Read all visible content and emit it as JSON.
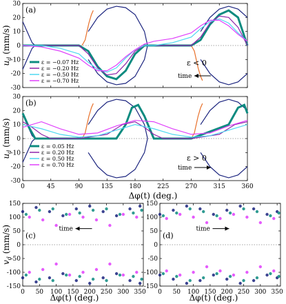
{
  "figure": {
    "shared_xlabel_top": "Δφ(t) (deg.)",
    "shared_xlabel_bottom": "Δφ(t) (deg.)"
  },
  "colors": {
    "navy": "#1a237e",
    "orange": "#e8702a",
    "teal": "#0d8b80",
    "purple": "#8e24aa",
    "cyan": "#4dd9f0",
    "magenta": "#e040fb"
  },
  "chart_data": [
    {
      "id": "a",
      "type": "line",
      "panel_label": "(a)",
      "ylabel": "u_d (mm/s)",
      "xlim": [
        0,
        360
      ],
      "ylim": [
        -30,
        30
      ],
      "xticks": [
        0,
        45,
        90,
        135,
        180,
        225,
        270,
        315,
        360
      ],
      "yticks": [
        -30,
        -20,
        -10,
        0,
        10,
        20,
        30
      ],
      "annotation": "ε < 0",
      "time_label": "time",
      "time_arrow": "left",
      "legend": [
        "ε = −0.07 Hz",
        "ε = −0.20 Hz",
        "ε = −0.50 Hz",
        "ε = −0.70 Hz"
      ],
      "series": [
        {
          "name": "ε = −0.07 Hz",
          "color": "#0d8b80",
          "x": [
            0,
            45,
            90,
            105,
            120,
            135,
            150,
            165,
            180,
            195,
            210,
            225,
            240,
            255,
            270,
            285,
            300,
            315,
            330,
            345,
            360
          ],
          "y": [
            0,
            0,
            0,
            -4,
            -15,
            -22,
            -24,
            -18,
            -6,
            0,
            0,
            0,
            0,
            0,
            0,
            4,
            15,
            22,
            25,
            20,
            0
          ]
        },
        {
          "name": "ε = −0.20 Hz",
          "color": "#8e24aa",
          "x": [
            0,
            45,
            90,
            105,
            120,
            135,
            150,
            165,
            180,
            195,
            210,
            225,
            240,
            255,
            270,
            285,
            300,
            315,
            330,
            345,
            360
          ],
          "y": [
            0,
            0,
            0,
            -6,
            -16,
            -21,
            -20,
            -13,
            -4,
            0,
            0,
            0,
            0,
            0,
            0,
            6,
            16,
            21,
            20,
            13,
            0
          ]
        },
        {
          "name": "ε = −0.50 Hz",
          "color": "#4dd9f0",
          "x": [
            0,
            30,
            60,
            90,
            105,
            120,
            135,
            150,
            165,
            180,
            195,
            210,
            240,
            270,
            285,
            300,
            315,
            330,
            345,
            360
          ],
          "y": [
            0,
            0,
            -2,
            -6,
            -12,
            -17,
            -19,
            -16,
            -9,
            -3,
            0,
            0,
            2,
            6,
            12,
            17,
            19,
            16,
            9,
            3
          ]
        },
        {
          "name": "ε = −0.70 Hz",
          "color": "#e040fb",
          "x": [
            0,
            30,
            60,
            90,
            105,
            120,
            135,
            150,
            165,
            180,
            195,
            210,
            240,
            270,
            285,
            300,
            315,
            330,
            345,
            360
          ],
          "y": [
            0,
            -1,
            -4,
            -9,
            -14,
            -18,
            -18,
            -14,
            -8,
            -3,
            1,
            3,
            5,
            9,
            14,
            18,
            18,
            14,
            8,
            3
          ]
        }
      ],
      "reference_curves": [
        {
          "color": "#1a237e",
          "x": [
            0,
            5,
            10,
            15,
            20
          ],
          "y": [
            17,
            12,
            7,
            2,
            0
          ]
        },
        {
          "color": "#1a237e",
          "x": [
            0,
            5,
            10,
            15,
            20
          ],
          "y": [
            -17,
            -12,
            -7,
            -2,
            0
          ]
        },
        {
          "color": "#1a237e",
          "x": [
            105,
            120,
            135,
            150,
            165,
            180,
            195,
            200
          ],
          "y": [
            10,
            20,
            26,
            28,
            27,
            22,
            10,
            0
          ]
        },
        {
          "color": "#1a237e",
          "x": [
            105,
            120,
            135,
            150,
            165,
            180,
            195,
            200
          ],
          "y": [
            -10,
            -20,
            -26,
            -28,
            -27,
            -22,
            -10,
            0
          ]
        },
        {
          "color": "#1a237e",
          "x": [
            285,
            300,
            315,
            330,
            345,
            360
          ],
          "y": [
            10,
            20,
            26,
            28,
            26,
            20
          ]
        },
        {
          "color": "#1a237e",
          "x": [
            285,
            300,
            315,
            330,
            345,
            360
          ],
          "y": [
            -10,
            -20,
            -26,
            -28,
            -26,
            -20
          ]
        },
        {
          "color": "#e8702a",
          "x": [
            95,
            100,
            103,
            106,
            110,
            113
          ],
          "y": [
            0,
            4,
            10,
            16,
            22,
            25
          ]
        },
        {
          "color": "#e8702a",
          "x": [
            270,
            275,
            278,
            281,
            285,
            288
          ],
          "y": [
            0,
            -4,
            -10,
            -16,
            -22,
            -25
          ]
        }
      ]
    },
    {
      "id": "b",
      "type": "line",
      "panel_label": "(b)",
      "ylabel": "u_d (mm/s)",
      "xlim": [
        0,
        360
      ],
      "ylim": [
        -30,
        30
      ],
      "xticks": [
        0,
        45,
        90,
        135,
        180,
        225,
        270,
        315,
        360
      ],
      "yticks": [
        -30,
        -20,
        -10,
        0,
        10,
        20,
        30
      ],
      "annotation": "ε > 0",
      "time_label": "time",
      "time_arrow": "right",
      "legend": [
        "ε = 0.05 Hz",
        "ε = 0.20 Hz",
        "ε = 0.50 Hz",
        "ε = 0.70 Hz"
      ],
      "series": [
        {
          "name": "ε = 0.05 Hz",
          "color": "#0d8b80",
          "x": [
            0,
            10,
            20,
            30,
            90,
            150,
            165,
            175,
            185,
            195,
            210,
            270,
            330,
            345,
            355,
            360
          ],
          "y": [
            18,
            8,
            0,
            0,
            0,
            0,
            10,
            22,
            24,
            16,
            0,
            0,
            10,
            22,
            24,
            18
          ]
        },
        {
          "name": "ε = 0.20 Hz",
          "color": "#8e24aa",
          "x": [
            0,
            15,
            30,
            45,
            90,
            135,
            160,
            180,
            195,
            210,
            225,
            270,
            315,
            340,
            360
          ],
          "y": [
            12,
            8,
            3,
            0,
            0,
            3,
            10,
            12,
            8,
            3,
            0,
            0,
            3,
            10,
            12
          ]
        },
        {
          "name": "ε = 0.50 Hz",
          "color": "#4dd9f0",
          "x": [
            0,
            30,
            60,
            90,
            120,
            150,
            180,
            210,
            240,
            270,
            300,
            330,
            360
          ],
          "y": [
            10,
            7,
            3,
            1,
            2,
            6,
            10,
            7,
            3,
            1,
            2,
            6,
            10
          ]
        },
        {
          "name": "ε = 0.70 Hz",
          "color": "#e040fb",
          "x": [
            0,
            30,
            60,
            90,
            120,
            150,
            180,
            210,
            240,
            270,
            300,
            330,
            360
          ],
          "y": [
            8,
            12,
            7,
            3,
            4,
            9,
            13,
            12,
            7,
            3,
            4,
            9,
            13
          ]
        }
      ],
      "reference_curves": [
        {
          "color": "#1a237e",
          "x": [
            0,
            5,
            10,
            15,
            20
          ],
          "y": [
            17,
            12,
            7,
            2,
            0
          ]
        },
        {
          "color": "#1a237e",
          "x": [
            0,
            5,
            10,
            15,
            20
          ],
          "y": [
            -17,
            -12,
            -7,
            -2,
            0
          ]
        },
        {
          "color": "#1a237e",
          "x": [
            105,
            120,
            135,
            150,
            165,
            180,
            195,
            200
          ],
          "y": [
            10,
            20,
            26,
            28,
            27,
            22,
            10,
            0
          ]
        },
        {
          "color": "#1a237e",
          "x": [
            105,
            120,
            135,
            150,
            165,
            180,
            195,
            200
          ],
          "y": [
            -10,
            -20,
            -26,
            -28,
            -27,
            -22,
            -10,
            0
          ]
        },
        {
          "color": "#1a237e",
          "x": [
            285,
            300,
            315,
            330,
            345,
            360
          ],
          "y": [
            10,
            20,
            26,
            28,
            26,
            20
          ]
        },
        {
          "color": "#1a237e",
          "x": [
            285,
            300,
            315,
            330,
            345,
            360
          ],
          "y": [
            -10,
            -20,
            -26,
            -28,
            -26,
            -20
          ]
        },
        {
          "color": "#e8702a",
          "x": [
            95,
            100,
            103,
            106,
            110,
            113
          ],
          "y": [
            0,
            4,
            10,
            16,
            22,
            25
          ]
        },
        {
          "color": "#e8702a",
          "x": [
            270,
            275,
            278,
            281,
            285,
            288
          ],
          "y": [
            0,
            4,
            10,
            16,
            22,
            25
          ]
        }
      ]
    },
    {
      "id": "c",
      "type": "scatter",
      "panel_label": "(c)",
      "ylabel": "v_d (mm/s)",
      "xlabel": "Δφ(t) (deg.)",
      "xlim": [
        0,
        360
      ],
      "ylim": [
        -150,
        150
      ],
      "xticks": [
        0,
        50,
        100,
        150,
        200,
        250,
        300,
        350
      ],
      "yticks": [
        -150,
        -100,
        -50,
        0,
        50,
        100,
        150
      ],
      "time_label": "time",
      "time_arrow": "left",
      "series": [
        {
          "name": "",
          "color": "#1a237e",
          "x": [
            0,
            40,
            80,
            120,
            160,
            200,
            240,
            280,
            320,
            350
          ],
          "y": [
            120,
            135,
            120,
            105,
            130,
            140,
            120,
            105,
            130,
            140
          ]
        },
        {
          "name": "",
          "color": "#0d8b80",
          "x": [
            10,
            50,
            90,
            130,
            170,
            210,
            250,
            290,
            330,
            355
          ],
          "y": [
            110,
            125,
            130,
            110,
            115,
            125,
            130,
            110,
            115,
            125
          ]
        },
        {
          "name": "",
          "color": "#e040fb",
          "x": [
            20,
            60,
            100,
            140,
            180,
            220,
            260,
            300,
            340
          ],
          "y": [
            100,
            90,
            70,
            110,
            100,
            90,
            70,
            110,
            100
          ]
        },
        {
          "name": "",
          "color": "#1a237e",
          "x": [
            0,
            40,
            80,
            120,
            160,
            200,
            240,
            280,
            320,
            350
          ],
          "y": [
            -120,
            -135,
            -120,
            -105,
            -130,
            -140,
            -120,
            -105,
            -130,
            -140
          ]
        },
        {
          "name": "",
          "color": "#0d8b80",
          "x": [
            10,
            50,
            90,
            130,
            170,
            210,
            250,
            290,
            330,
            355
          ],
          "y": [
            -110,
            -125,
            -130,
            -110,
            -115,
            -125,
            -130,
            -110,
            -115,
            -125
          ]
        },
        {
          "name": "",
          "color": "#e040fb",
          "x": [
            20,
            60,
            100,
            140,
            180,
            220,
            260,
            300,
            340
          ],
          "y": [
            -100,
            -90,
            -70,
            -110,
            -100,
            -90,
            -70,
            -110,
            -100
          ]
        }
      ]
    },
    {
      "id": "d",
      "type": "scatter",
      "panel_label": "(d)",
      "ylabel": "",
      "xlabel": "Δφ(t) (deg.)",
      "xlim": [
        0,
        360
      ],
      "ylim": [
        -150,
        150
      ],
      "xticks": [
        0,
        50,
        100,
        150,
        200,
        250,
        300,
        350
      ],
      "yticks": [
        -150,
        -100,
        -50,
        0,
        50,
        100,
        150
      ],
      "time_label": "time",
      "time_arrow": "right",
      "series": [
        {
          "name": "",
          "color": "#1a237e",
          "x": [
            0,
            40,
            80,
            120,
            160,
            200,
            240,
            280,
            320,
            350
          ],
          "y": [
            110,
            125,
            140,
            130,
            110,
            125,
            140,
            130,
            110,
            120
          ]
        },
        {
          "name": "",
          "color": "#0d8b80",
          "x": [
            10,
            50,
            90,
            130,
            170,
            210,
            250,
            290,
            330,
            355
          ],
          "y": [
            105,
            115,
            130,
            120,
            105,
            115,
            130,
            120,
            105,
            115
          ]
        },
        {
          "name": "",
          "color": "#e040fb",
          "x": [
            20,
            60,
            100,
            140,
            180,
            220,
            260,
            300,
            340
          ],
          "y": [
            95,
            110,
            100,
            80,
            95,
            110,
            100,
            80,
            95
          ]
        },
        {
          "name": "",
          "color": "#1a237e",
          "x": [
            0,
            40,
            80,
            120,
            160,
            200,
            240,
            280,
            320,
            350
          ],
          "y": [
            -110,
            -125,
            -140,
            -130,
            -110,
            -125,
            -140,
            -130,
            -110,
            -120
          ]
        },
        {
          "name": "",
          "color": "#0d8b80",
          "x": [
            10,
            50,
            90,
            130,
            170,
            210,
            250,
            290,
            330,
            355
          ],
          "y": [
            -105,
            -115,
            -130,
            -120,
            -105,
            -115,
            -130,
            -120,
            -105,
            -115
          ]
        },
        {
          "name": "",
          "color": "#e040fb",
          "x": [
            20,
            60,
            100,
            140,
            180,
            220,
            260,
            300,
            340
          ],
          "y": [
            -95,
            -110,
            -100,
            -80,
            -95,
            -110,
            -100,
            -80,
            -95
          ]
        }
      ]
    }
  ]
}
